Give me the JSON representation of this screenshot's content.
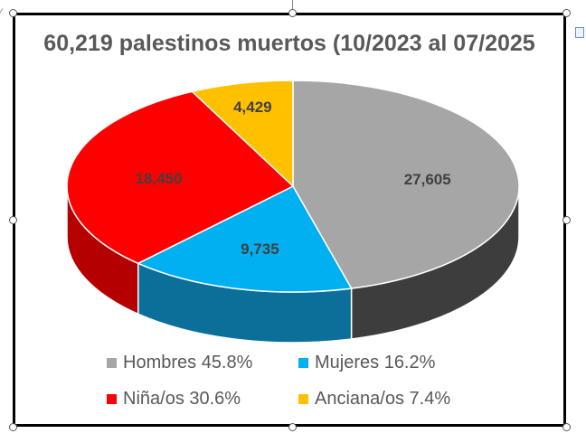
{
  "chart_data": {
    "type": "pie",
    "title": "60,219 palestinos  muertos  (10/2023 al 07/2025",
    "three_d": true,
    "legend_position": "bottom",
    "slices": [
      {
        "label": "Hombres 45.8%",
        "value": 27605,
        "value_label": "27,605",
        "percent": 45.8,
        "color": "#a6a6a6",
        "side_color": "#3d3d3d"
      },
      {
        "label": "Mujeres 16.2%",
        "value": 9735,
        "value_label": "9,735",
        "percent": 16.2,
        "color": "#00b0f0",
        "side_color": "#0b6f99"
      },
      {
        "label": "Niña/os 30.6%",
        "value": 18450,
        "value_label": "18,450",
        "percent": 30.6,
        "color": "#ff0000",
        "side_color": "#b40000"
      },
      {
        "label": "Anciana/os 7.4%",
        "value": 4429,
        "value_label": "4,429",
        "percent": 7.4,
        "color": "#ffc000",
        "side_color": "#b38600"
      }
    ]
  }
}
